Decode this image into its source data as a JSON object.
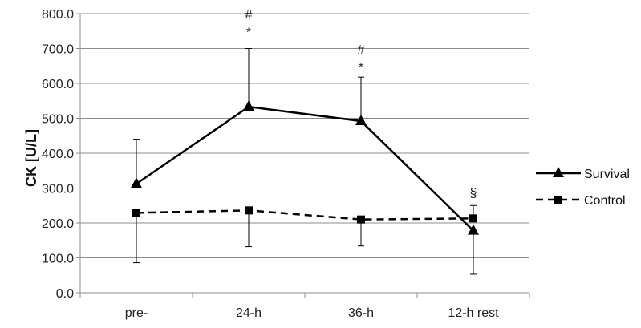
{
  "chart_data": {
    "type": "line",
    "title": "",
    "xlabel": "",
    "ylabel": "CK [U/L]",
    "ylim": [
      0,
      800
    ],
    "ytick_step": 100,
    "ytick_labels": [
      "0.0",
      "100.0",
      "200.0",
      "300.0",
      "400.0",
      "500.0",
      "600.0",
      "700.0",
      "800.0"
    ],
    "grid": true,
    "legend_position": "right",
    "categories": [
      "pre-",
      "24-h",
      "36-h",
      "12-h rest"
    ],
    "series": [
      {
        "name": "Survival",
        "values": [
          312,
          533,
          492,
          178
        ],
        "error_upper": [
          440,
          700,
          618,
          178
        ],
        "error_lower": [
          312,
          533,
          492,
          53
        ],
        "line_style": "solid",
        "marker": "triangle",
        "color": "#000000"
      },
      {
        "name": "Control",
        "values": [
          229,
          236,
          210,
          213
        ],
        "error_upper": [
          229,
          236,
          210,
          250
        ],
        "error_lower": [
          86,
          132,
          134,
          213
        ],
        "line_style": "dashed",
        "marker": "square",
        "color": "#000000"
      }
    ],
    "annotations": [
      {
        "text": "#",
        "category_index": 1,
        "y": 785
      },
      {
        "text": "*",
        "category_index": 1,
        "y": 735
      },
      {
        "text": "#",
        "category_index": 2,
        "y": 685
      },
      {
        "text": "*",
        "category_index": 2,
        "y": 635
      },
      {
        "text": "§",
        "category_index": 3,
        "y": 275
      }
    ]
  }
}
